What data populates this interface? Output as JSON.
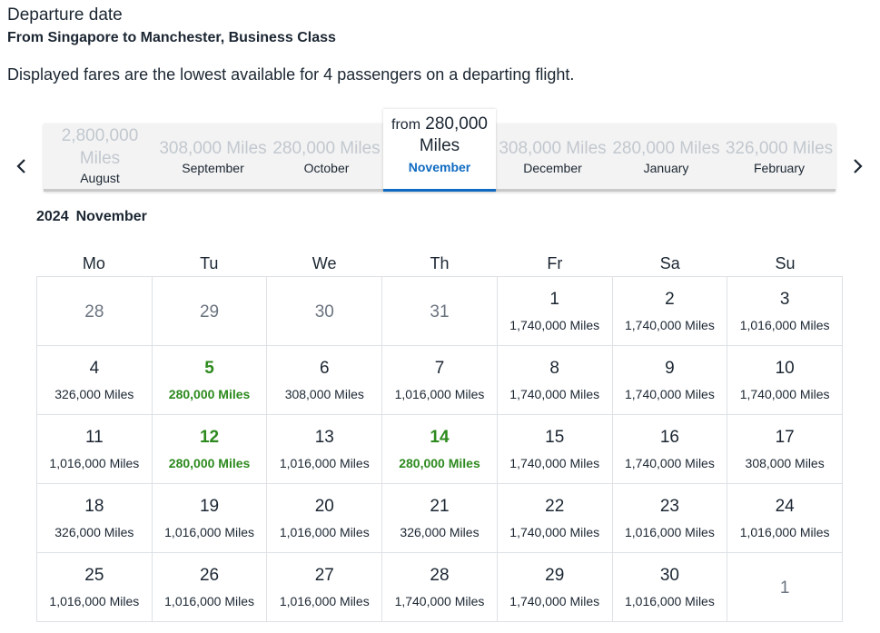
{
  "header": {
    "title": "Departure date",
    "route": "From Singapore to Manchester, Business Class",
    "note": "Displayed fares are the lowest available for 4 passengers on a departing flight."
  },
  "nav": {
    "prev_icon": "chevron-left-icon",
    "next_icon": "chevron-right-icon"
  },
  "months": [
    {
      "name": "August",
      "miles": "2,800,000",
      "unit": "Miles"
    },
    {
      "name": "September",
      "miles": "308,000 Miles"
    },
    {
      "name": "October",
      "miles": "280,000 Miles"
    },
    {
      "name": "November",
      "prefix": "from",
      "miles": "280,000",
      "unit": "Miles",
      "selected": true
    },
    {
      "name": "December",
      "miles": "308,000 Miles"
    },
    {
      "name": "January",
      "miles": "280,000 Miles"
    },
    {
      "name": "February",
      "miles": "326,000 Miles"
    }
  ],
  "calendar": {
    "year": "2024",
    "month": "November",
    "weekdays": [
      "Mo",
      "Tu",
      "We",
      "Th",
      "Fr",
      "Sa",
      "Su"
    ],
    "cells": [
      {
        "day": "28",
        "outside": true
      },
      {
        "day": "29",
        "outside": true
      },
      {
        "day": "30",
        "outside": true
      },
      {
        "day": "31",
        "outside": true
      },
      {
        "day": "1",
        "price": "1,740,000 Miles"
      },
      {
        "day": "2",
        "price": "1,740,000 Miles"
      },
      {
        "day": "3",
        "price": "1,016,000 Miles"
      },
      {
        "day": "4",
        "price": "326,000 Miles"
      },
      {
        "day": "5",
        "price": "280,000 Miles",
        "lowest": true
      },
      {
        "day": "6",
        "price": "308,000 Miles"
      },
      {
        "day": "7",
        "price": "1,016,000 Miles"
      },
      {
        "day": "8",
        "price": "1,740,000 Miles"
      },
      {
        "day": "9",
        "price": "1,740,000 Miles"
      },
      {
        "day": "10",
        "price": "1,740,000 Miles"
      },
      {
        "day": "11",
        "price": "1,016,000 Miles"
      },
      {
        "day": "12",
        "price": "280,000 Miles",
        "lowest": true
      },
      {
        "day": "13",
        "price": "1,016,000 Miles"
      },
      {
        "day": "14",
        "price": "280,000 Miles",
        "lowest": true
      },
      {
        "day": "15",
        "price": "1,740,000 Miles"
      },
      {
        "day": "16",
        "price": "1,740,000 Miles"
      },
      {
        "day": "17",
        "price": "308,000 Miles"
      },
      {
        "day": "18",
        "price": "326,000 Miles"
      },
      {
        "day": "19",
        "price": "1,016,000 Miles"
      },
      {
        "day": "20",
        "price": "1,016,000 Miles"
      },
      {
        "day": "21",
        "price": "326,000 Miles"
      },
      {
        "day": "22",
        "price": "1,740,000 Miles"
      },
      {
        "day": "23",
        "price": "1,016,000 Miles"
      },
      {
        "day": "24",
        "price": "1,016,000 Miles"
      },
      {
        "day": "25",
        "price": "1,016,000 Miles"
      },
      {
        "day": "26",
        "price": "1,016,000 Miles"
      },
      {
        "day": "27",
        "price": "1,016,000 Miles"
      },
      {
        "day": "28",
        "price": "1,740,000 Miles"
      },
      {
        "day": "29",
        "price": "1,740,000 Miles"
      },
      {
        "day": "30",
        "price": "1,016,000 Miles"
      },
      {
        "day": "1",
        "outside": true
      }
    ]
  },
  "colors": {
    "lowest_fare": "#2d8a1e",
    "selected_accent": "#0f6bc2",
    "text": "#1b2632",
    "muted": "#c2c8cf"
  }
}
